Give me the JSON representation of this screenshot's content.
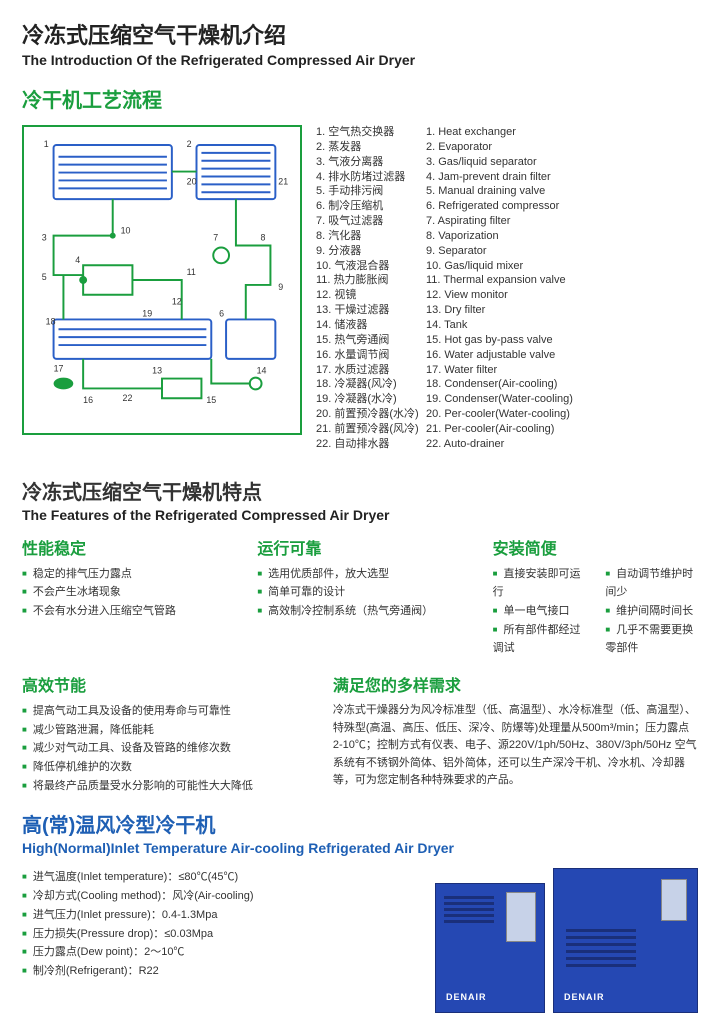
{
  "header": {
    "title_cn": "冷冻式压缩空气干燥机介绍",
    "title_en": "The Introduction Of the Refrigerated Compressed Air Dryer"
  },
  "process": {
    "heading_cn": "冷干机工艺流程",
    "parts": [
      {
        "n": "1",
        "cn": "空气热交换器",
        "en": "Heat exchanger"
      },
      {
        "n": "2",
        "cn": "蒸发器",
        "en": "Evaporator"
      },
      {
        "n": "3",
        "cn": "气液分离器",
        "en": "Gas/liquid separator"
      },
      {
        "n": "4",
        "cn": "排水防堵过滤器",
        "en": "Jam-prevent drain filter"
      },
      {
        "n": "5",
        "cn": "手动排污阀",
        "en": "Manual draining valve"
      },
      {
        "n": "6",
        "cn": "制冷压缩机",
        "en": "Refrigerated compressor"
      },
      {
        "n": "7",
        "cn": "吸气过滤器",
        "en": "Aspirating filter"
      },
      {
        "n": "8",
        "cn": "汽化器",
        "en": "Vaporization"
      },
      {
        "n": "9",
        "cn": "分液器",
        "en": "Separator"
      },
      {
        "n": "10",
        "cn": "气液混合器",
        "en": "Gas/liquid mixer"
      },
      {
        "n": "11",
        "cn": "热力膨胀阀",
        "en": "Thermal expansion valve"
      },
      {
        "n": "12",
        "cn": "视镜",
        "en": "View monitor"
      },
      {
        "n": "13",
        "cn": "干燥过滤器",
        "en": "Dry filter"
      },
      {
        "n": "14",
        "cn": "储液器",
        "en": "Tank"
      },
      {
        "n": "15",
        "cn": "热气旁通阀",
        "en": "Hot gas by-pass valve"
      },
      {
        "n": "16",
        "cn": "水量调节阀",
        "en": "Water adjustable valve"
      },
      {
        "n": "17",
        "cn": "水质过滤器",
        "en": "Water filter"
      },
      {
        "n": "18",
        "cn": "冷凝器(风冷)",
        "en": "Condenser(Air-cooling)"
      },
      {
        "n": "19",
        "cn": "冷凝器(水冷)",
        "en": "Condenser(Water-cooling)"
      },
      {
        "n": "20",
        "cn": "前置预冷器(水冷)",
        "en": "Per-cooler(Water-cooling)"
      },
      {
        "n": "21",
        "cn": "前置预冷器(风冷)",
        "en": "Per-cooler(Air-cooling)"
      },
      {
        "n": "22",
        "cn": "自动排水器",
        "en": "Auto-drainer"
      }
    ],
    "diagram": {
      "stroke_blue": "#2a5fc7",
      "stroke_green": "#1a9e3e",
      "bg": "#ffffff"
    }
  },
  "features": {
    "heading_cn": "冷冻式压缩空气干燥机特点",
    "heading_en": "The Features of the Refrigerated Compressed Air Dryer",
    "row1": [
      {
        "title": "性能稳定",
        "color": "#1a9e3e",
        "items": [
          "稳定的排气压力露点",
          "不会产生冰堵现象",
          "不会有水分进入压缩空气管路"
        ]
      },
      {
        "title": "运行可靠",
        "color": "#1a9e3e",
        "items": [
          "选用优质部件，放大选型",
          "简单可靠的设计",
          "高效制冷控制系统（热气旁通阀）"
        ]
      },
      {
        "title": "安装简便",
        "color": "#1a9e3e",
        "cols": [
          [
            "直接安装即可运行",
            "单一电气接口",
            "所有部件都经过调试"
          ],
          [
            "自动调节维护时间少",
            "维护间隔时间长",
            "几乎不需要更换零部件"
          ]
        ]
      }
    ],
    "row2": [
      {
        "title": "高效节能",
        "color": "#1a9e3e",
        "items": [
          "提高气动工具及设备的使用寿命与可靠性",
          "减少管路泄漏，降低能耗",
          "减少对气动工具、设备及管路的维修次数",
          "降低停机维护的次数",
          "将最终产品质量受水分影响的可能性大大降低"
        ]
      },
      {
        "title": "满足您的多样需求",
        "color": "#1a9e3e",
        "para": "冷冻式干燥器分为风冷标准型（低、高温型）、水冷标准型（低、高温型）、特殊型(高温、高压、低压、深冷、防爆等)处理量从500m³/min；压力露点2-10℃；控制方式有仪表、电子、源220V/1ph/50Hz、380V/3ph/50Hz 空气系统有不锈钢外简体、铝外简体，还可以生产深冷干机、冷水机、冷却器等，可为您定制各种特殊要求的产品。"
      }
    ]
  },
  "hi_temp": {
    "heading_cn": "高(常)温风冷型冷干机",
    "heading_en": "High(Normal)Inlet Temperature Air-cooling Refrigerated Air Dryer",
    "specs": [
      "进气温度(Inlet temperature)：≤80℃(45℃)",
      "冷却方式(Cooling method)：风冷(Air-cooling)",
      "进气压力(Inlet pressure)：0.4-1.3Mpa",
      "压力损失(Pressure drop)：≤0.03Mpa",
      "压力露点(Dew point)：2～10℃",
      "制冷剂(Refrigerant)：R22"
    ],
    "brand": "DENAIR"
  },
  "colors": {
    "green": "#1a9e3e",
    "blue": "#1e5fb4",
    "machine_blue": "#2548b3"
  }
}
